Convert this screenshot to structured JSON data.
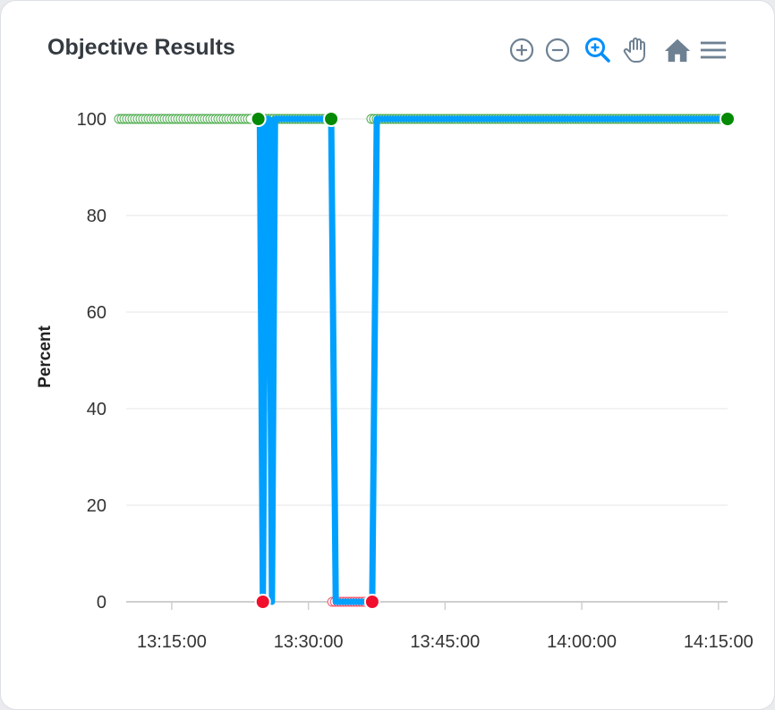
{
  "panel": {
    "title": "Objective Results"
  },
  "toolbar": {
    "items": [
      {
        "name": "zoom-in",
        "icon": "plus-circle-icon"
      },
      {
        "name": "zoom-out",
        "icon": "minus-circle-icon"
      },
      {
        "name": "zoom-selection",
        "icon": "magnifier-plus-icon",
        "active": true
      },
      {
        "name": "pan",
        "icon": "hand-icon"
      },
      {
        "name": "reset",
        "icon": "home-icon"
      },
      {
        "name": "menu",
        "icon": "hamburger-menu-icon"
      }
    ]
  },
  "colors": {
    "line": "#00A0FF",
    "pass": "#058a05",
    "fail": "#f0102e",
    "grid": "#e4e4e4",
    "icon": "#6e8192",
    "active_icon": "#008FFB"
  },
  "chart_data": {
    "type": "line",
    "title": "Objective Results",
    "xlabel": "",
    "ylabel": "Percent",
    "x_ticks": [
      "13:15:00",
      "13:30:00",
      "13:45:00",
      "14:00:00",
      "14:15:00"
    ],
    "y_ticks": [
      "0",
      "20",
      "40",
      "60",
      "80",
      "100"
    ],
    "xlim": [
      "13:10:00",
      "14:16:00"
    ],
    "ylim": [
      0,
      100
    ],
    "grid": "horizontal",
    "series": [
      {
        "values": [
          {
            "x": "13:24:40",
            "y": 100
          },
          {
            "x": "13:25:00",
            "y": 0
          },
          {
            "x": "13:25:20",
            "y": 100
          },
          {
            "x": "13:25:40",
            "y": 100
          },
          {
            "x": "13:26:00",
            "y": 0
          },
          {
            "x": "13:26:20",
            "y": 100
          },
          {
            "x": "13:32:30",
            "y": 100
          },
          {
            "x": "13:33:00",
            "y": 0
          },
          {
            "x": "13:37:00",
            "y": 0
          },
          {
            "x": "13:37:30",
            "y": 100
          },
          {
            "x": "14:16:00",
            "y": 100
          }
        ]
      }
    ],
    "markers": [
      {
        "x": "13:24:30",
        "y": 100,
        "status": "pass"
      },
      {
        "x": "13:25:00",
        "y": 0,
        "status": "fail"
      },
      {
        "x": "13:32:30",
        "y": 100,
        "status": "pass"
      },
      {
        "x": "13:37:00",
        "y": 0,
        "status": "fail"
      },
      {
        "x": "14:16:00",
        "y": 100,
        "status": "pass"
      }
    ]
  }
}
